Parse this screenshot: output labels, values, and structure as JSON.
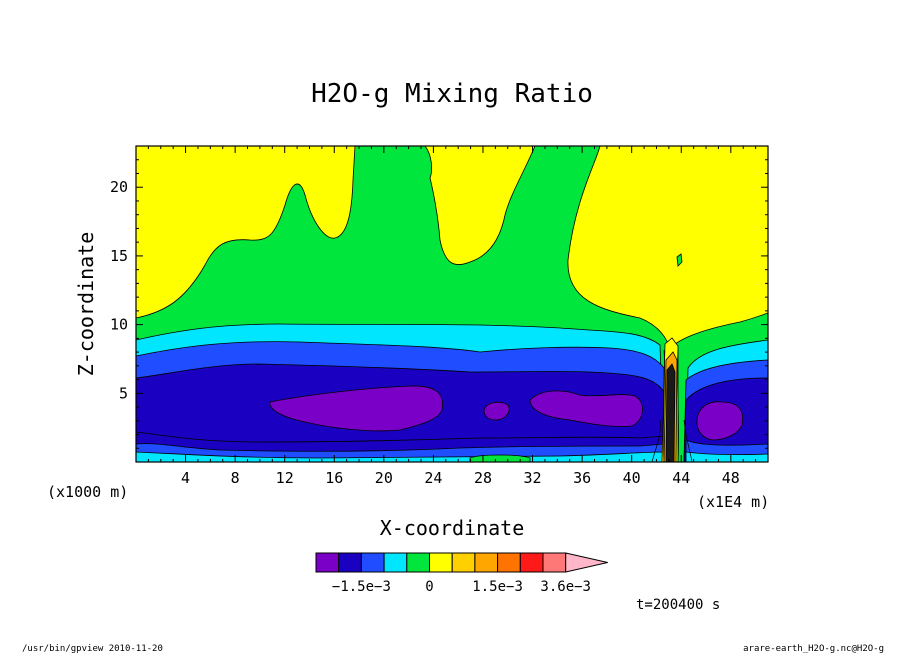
{
  "chart_data": {
    "type": "heatmap",
    "title": "H2O-g Mixing Ratio",
    "xlabel": "X-coordinate",
    "ylabel": "Z-coordinate",
    "x_unit_left": "(x1000 m)",
    "x_unit_right": "(x1E4 m)",
    "x_range": [
      0,
      51
    ],
    "y_range": [
      0,
      23
    ],
    "x_ticks": [
      "4",
      "8",
      "12",
      "16",
      "20",
      "24",
      "28",
      "32",
      "36",
      "40",
      "44",
      "48"
    ],
    "y_ticks": [
      "5",
      "10",
      "15",
      "20"
    ],
    "time_label": "t=200400 s",
    "colorbar": {
      "colors": [
        "#7a00c8",
        "#1a00c0",
        "#1f4dff",
        "#00e6ff",
        "#00e63c",
        "#ffff00",
        "#ffd000",
        "#ffa600",
        "#ff7300",
        "#ff1a1a",
        "#ff7878",
        "#ffb6c8"
      ],
      "labels": [
        "−1.5e−3",
        "0",
        "1.5e−3",
        "3.6e−3"
      ]
    }
  },
  "footer": {
    "left": "/usr/bin/gpview  2010-11-20",
    "right": "arare-earth_H2O-g.nc@H2O-g"
  }
}
